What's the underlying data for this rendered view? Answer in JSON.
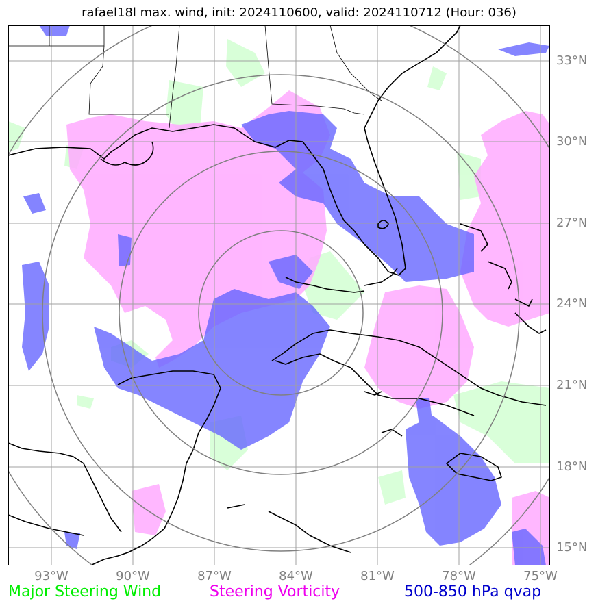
{
  "title": "rafael18l max. wind, init: 2024110600, valid: 2024110712 (Hour: 036)",
  "lat_labels": [
    "33°N",
    "30°N",
    "27°N",
    "24°N",
    "21°N",
    "18°N",
    "15°N"
  ],
  "lon_labels": [
    "93°W",
    "90°W",
    "87°W",
    "84°W",
    "81°W",
    "78°W",
    "75°W"
  ],
  "legend": {
    "wind": {
      "label": "Major Steering Wind",
      "color": "#00ee00"
    },
    "vorticity": {
      "label": "Steering Vorticity",
      "color": "#ee00ee"
    },
    "qvap": {
      "label": "500-850 hPa qvap",
      "color": "#0000cc"
    }
  },
  "colors": {
    "wind_fill": "#ccffcc",
    "vorticity_fill": "#ffaaff",
    "qvap_fill": "#6666ff",
    "gridline": "#a0a0a0",
    "range_ring": "#808080",
    "coastline": "#000000"
  }
}
